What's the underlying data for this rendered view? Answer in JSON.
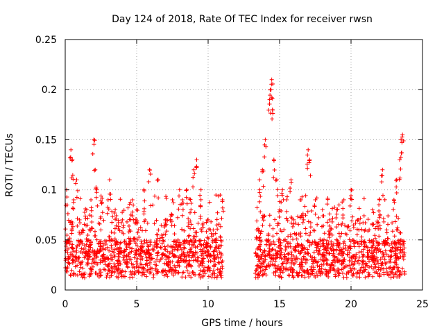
{
  "chart_data": {
    "type": "scatter",
    "title": "Day 124 of 2018, Rate Of TEC Index for receiver rwsn",
    "xlabel": "GPS time / hours",
    "ylabel": "ROTI / TECUs",
    "xlim": [
      0,
      25
    ],
    "ylim": [
      0,
      0.25
    ],
    "xticks": [
      "0",
      "5",
      "10",
      "15",
      "20",
      "25"
    ],
    "yticks": [
      "0",
      "0.05",
      "0.1",
      "0.15",
      "0.2",
      "0.25"
    ],
    "grid": true,
    "marker": "+",
    "color": "#ff0000",
    "series": [
      {
        "name": "ROTI",
        "note": "dense band ~0.01-0.05 TECU from 0 to 11 h and 13.3 to 23.8 h; data gap 11-13.3 h",
        "x": [
          0.1,
          0.2,
          0.4,
          0.5,
          0.6,
          0.8,
          1.0,
          1.2,
          1.5,
          1.8,
          2.0,
          2.1,
          2.2,
          2.5,
          3.0,
          3.1,
          3.5,
          4.0,
          4.5,
          4.7,
          5.0,
          5.5,
          5.9,
          6.5,
          7.0,
          7.5,
          8.0,
          8.2,
          8.5,
          8.8,
          9.0,
          9.2,
          9.5,
          10.0,
          10.5,
          11.0,
          13.4,
          13.6,
          13.8,
          14.0,
          14.3,
          14.4,
          14.45,
          14.5,
          14.6,
          14.8,
          15.0,
          15.2,
          15.5,
          15.8,
          16.0,
          16.5,
          17.0,
          17.1,
          17.5,
          18.0,
          18.5,
          19.0,
          19.5,
          20.0,
          20.5,
          21.0,
          21.5,
          22.0,
          22.2,
          22.5,
          23.0,
          23.2,
          23.4,
          23.5,
          23.6
        ],
        "y": [
          0.1,
          0.05,
          0.14,
          0.13,
          0.09,
          0.11,
          0.07,
          0.06,
          0.08,
          0.09,
          0.15,
          0.12,
          0.1,
          0.06,
          0.09,
          0.11,
          0.08,
          0.07,
          0.06,
          0.09,
          0.08,
          0.1,
          0.12,
          0.11,
          0.07,
          0.09,
          0.1,
          0.09,
          0.1,
          0.08,
          0.12,
          0.13,
          0.1,
          0.07,
          0.05,
          0.09,
          0.06,
          0.11,
          0.12,
          0.15,
          0.19,
          0.2,
          0.21,
          0.18,
          0.13,
          0.11,
          0.08,
          0.1,
          0.09,
          0.11,
          0.07,
          0.09,
          0.14,
          0.13,
          0.09,
          0.08,
          0.07,
          0.08,
          0.09,
          0.1,
          0.07,
          0.06,
          0.08,
          0.09,
          0.12,
          0.06,
          0.09,
          0.11,
          0.13,
          0.15,
          0.155
        ]
      }
    ]
  }
}
